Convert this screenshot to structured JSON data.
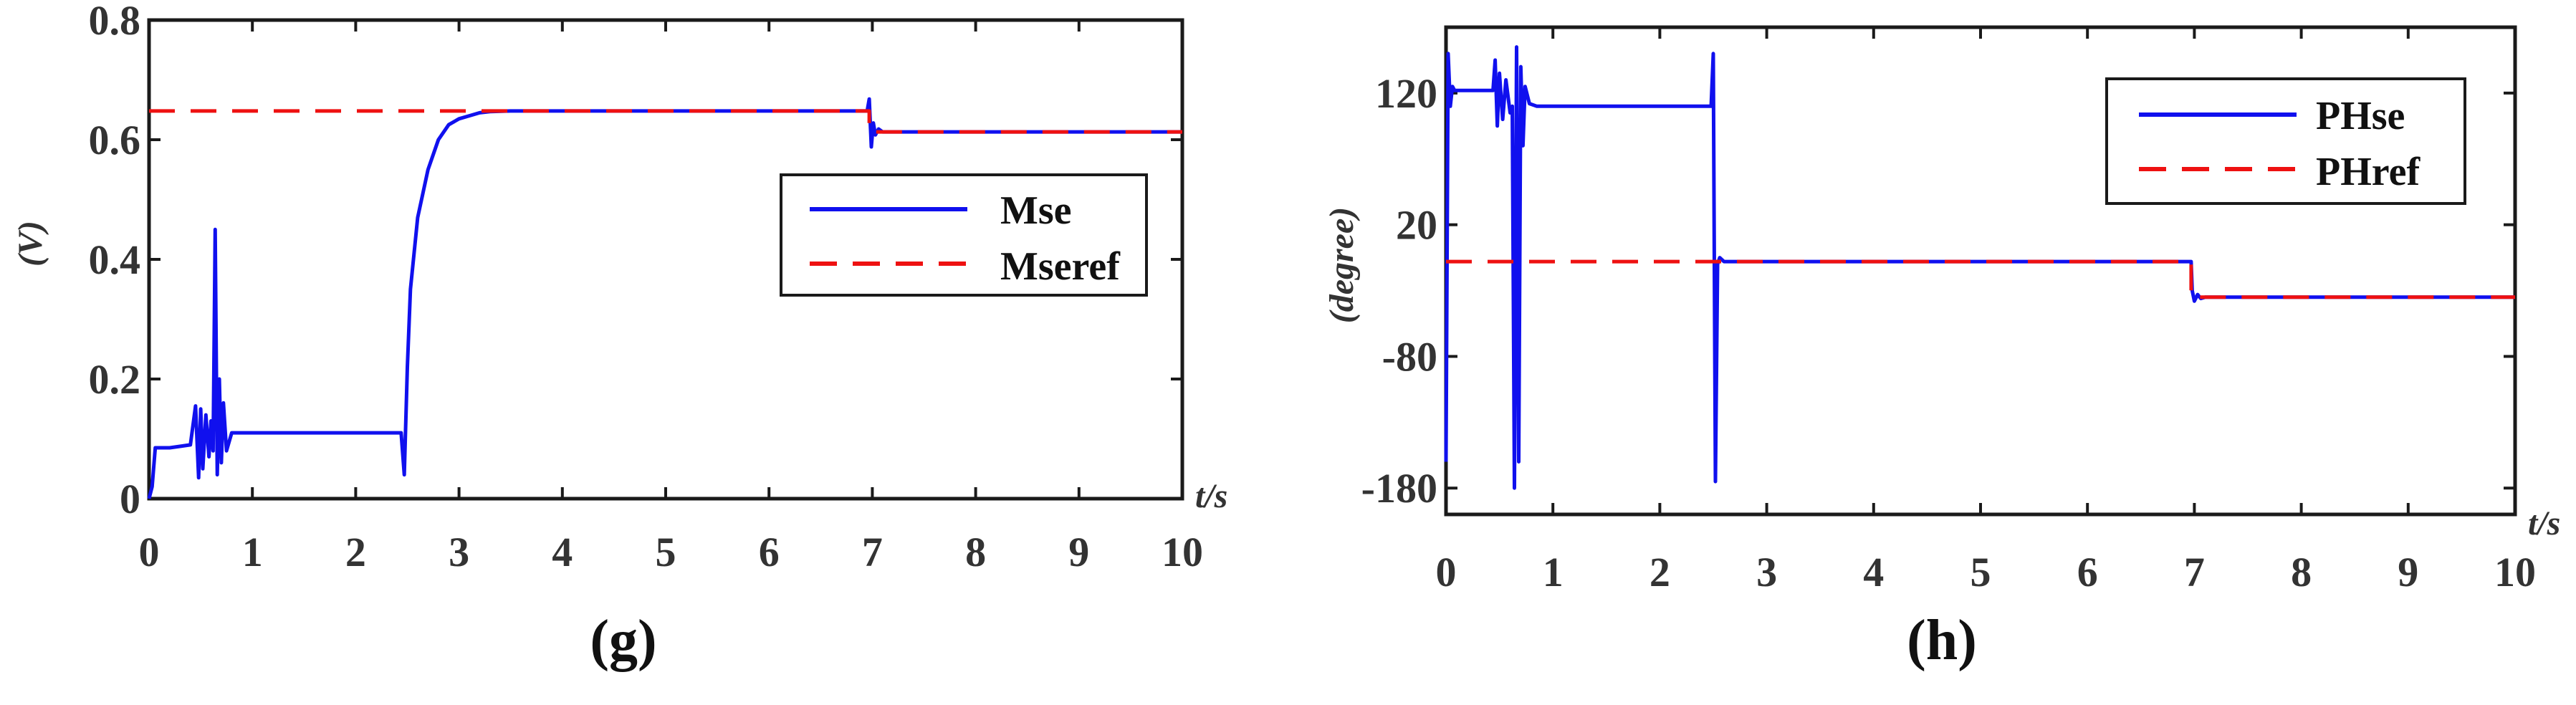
{
  "chart_data": [
    {
      "type": "line",
      "caption": "(g)",
      "ylabel": "(V)",
      "xlabel": "t/s",
      "xlim": [
        0,
        10
      ],
      "ylim": [
        0,
        0.8
      ],
      "xticks": [
        0,
        1,
        2,
        3,
        4,
        5,
        6,
        7,
        8,
        9,
        10
      ],
      "xtick_labels": [
        "0",
        "1",
        "2",
        "3",
        "4",
        "5",
        "6",
        "7",
        "8",
        "9",
        "10"
      ],
      "yticks": [
        0,
        0.2,
        0.4,
        0.6,
        0.8
      ],
      "ytick_labels": [
        "0",
        "0.2",
        "0.4",
        "0.6",
        "0.8"
      ],
      "legend_position": "right",
      "series": [
        {
          "name": "Mse",
          "color": "#1010ee",
          "style": "solid",
          "x": [
            0,
            0.03,
            0.06,
            0.1,
            0.2,
            0.4,
            0.45,
            0.48,
            0.5,
            0.52,
            0.55,
            0.58,
            0.6,
            0.62,
            0.64,
            0.66,
            0.68,
            0.7,
            0.72,
            0.75,
            0.8,
            1.0,
            1.5,
            2.0,
            2.44,
            2.47,
            2.5,
            2.53,
            2.6,
            2.7,
            2.8,
            2.9,
            3.0,
            3.1,
            3.2,
            3.3,
            3.5,
            4.0,
            5.0,
            6.0,
            6.95,
            6.97,
            6.99,
            7.01,
            7.03,
            7.06,
            7.1,
            7.2,
            7.5,
            8.0,
            9.0,
            10.0
          ],
          "y": [
            0.0,
            0.02,
            0.085,
            0.085,
            0.085,
            0.09,
            0.155,
            0.035,
            0.15,
            0.05,
            0.14,
            0.07,
            0.13,
            0.08,
            0.45,
            0.04,
            0.2,
            0.06,
            0.16,
            0.08,
            0.11,
            0.11,
            0.11,
            0.11,
            0.11,
            0.04,
            0.22,
            0.35,
            0.47,
            0.55,
            0.6,
            0.625,
            0.635,
            0.64,
            0.645,
            0.647,
            0.648,
            0.648,
            0.648,
            0.648,
            0.648,
            0.668,
            0.588,
            0.628,
            0.608,
            0.618,
            0.613,
            0.613,
            0.613,
            0.613,
            0.613,
            0.613
          ]
        },
        {
          "name": "Mseref",
          "color": "#ee1111",
          "style": "dashed",
          "x": [
            0,
            6.97,
            6.97,
            10
          ],
          "y": [
            0.648,
            0.648,
            0.613,
            0.613
          ]
        }
      ]
    },
    {
      "type": "line",
      "caption": "(h)",
      "ylabel": "(degree)",
      "xlabel": "t/s",
      "xlim": [
        0,
        10
      ],
      "ylim": [
        -200,
        170
      ],
      "xticks": [
        0,
        1,
        2,
        3,
        4,
        5,
        6,
        7,
        8,
        9,
        10
      ],
      "xtick_labels": [
        "0",
        "1",
        "2",
        "3",
        "4",
        "5",
        "6",
        "7",
        "8",
        "9",
        "10"
      ],
      "yticks": [
        -180,
        -80,
        20,
        120
      ],
      "ytick_labels": [
        "-180",
        "-80",
        "20",
        "120"
      ],
      "legend_position": "top-right",
      "series": [
        {
          "name": "PHse",
          "color": "#1010ee",
          "style": "solid",
          "x": [
            0,
            0.02,
            0.04,
            0.06,
            0.08,
            0.12,
            0.3,
            0.44,
            0.46,
            0.48,
            0.5,
            0.53,
            0.56,
            0.6,
            0.62,
            0.64,
            0.66,
            0.68,
            0.7,
            0.72,
            0.74,
            0.78,
            0.85,
            1.0,
            1.5,
            2.0,
            2.48,
            2.5,
            2.52,
            2.54,
            2.56,
            2.6,
            2.7,
            3.0,
            4.0,
            5.0,
            6.0,
            6.97,
            6.98,
            7.0,
            7.03,
            7.06,
            7.1,
            7.5,
            8.0,
            9.0,
            10.0
          ],
          "y": [
            -160,
            150,
            110,
            125,
            122,
            122,
            122,
            122,
            145,
            95,
            135,
            100,
            130,
            105,
            110,
            -180,
            155,
            -160,
            140,
            80,
            125,
            112,
            110,
            110,
            110,
            110,
            110,
            150,
            -175,
            -10,
            -5,
            -8,
            -8,
            -8,
            -8,
            -8,
            -8,
            -8,
            -30,
            -38,
            -33,
            -36,
            -35,
            -35,
            -35,
            -35,
            -35
          ]
        },
        {
          "name": "PHref",
          "color": "#ee1111",
          "style": "dashed",
          "x": [
            0,
            6.97,
            6.97,
            10
          ],
          "y": [
            -8,
            -8,
            -35,
            -35
          ]
        }
      ]
    }
  ]
}
